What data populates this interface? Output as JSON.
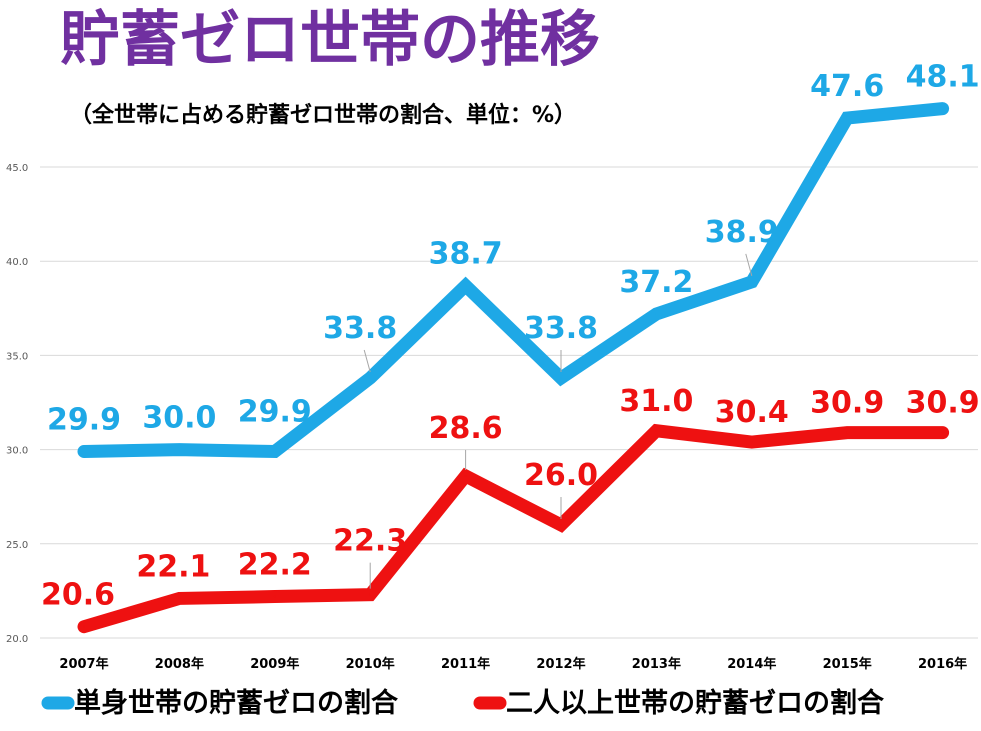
{
  "title": "貯蓄ゼロ世帯の推移",
  "subtitle": "（全世帯に占める貯蓄ゼロ世帯の割合、単位：%）",
  "chart_data": {
    "type": "line",
    "categories": [
      "2007年",
      "2008年",
      "2009年",
      "2010年",
      "2011年",
      "2012年",
      "2013年",
      "2014年",
      "2015年",
      "2016年"
    ],
    "y_ticks": [
      "20.0",
      "25.0",
      "30.0",
      "35.0",
      "40.0",
      "45.0"
    ],
    "ylim": [
      20,
      48.4
    ],
    "grid": true,
    "legend_position": "bottom",
    "series": [
      {
        "name": "単身世帯の貯蓄ゼロの割合",
        "color": "#1ea8e6",
        "values": [
          29.9,
          30.0,
          29.9,
          33.8,
          38.7,
          33.8,
          37.2,
          38.9,
          47.6,
          48.1
        ],
        "labels": [
          "29.9",
          "30.0",
          "29.9",
          "33.8",
          "38.7",
          "33.8",
          "37.2",
          "38.9",
          "47.6",
          "48.1"
        ]
      },
      {
        "name": "二人以上世帯の貯蓄ゼロの割合",
        "color": "#ee1111",
        "values": [
          20.6,
          22.1,
          22.2,
          22.3,
          28.6,
          26.0,
          31.0,
          30.4,
          30.9,
          30.9
        ],
        "labels": [
          "20.6",
          "22.1",
          "22.2",
          "22.3",
          "28.6",
          "26.0",
          "31.0",
          "30.4",
          "30.9",
          "30.9"
        ]
      }
    ]
  }
}
